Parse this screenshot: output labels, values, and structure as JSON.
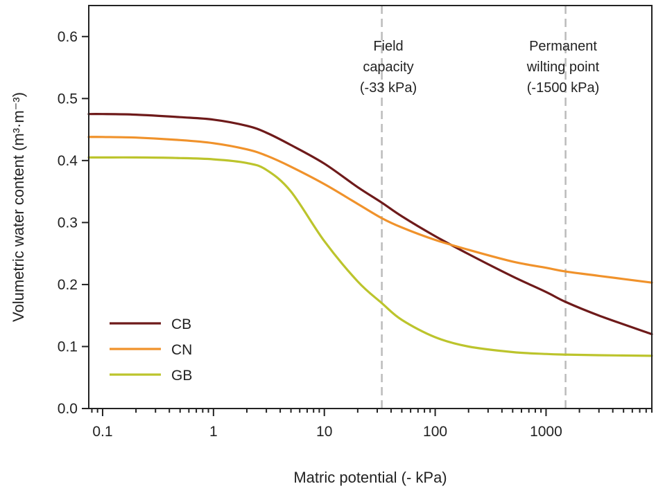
{
  "chart_data": {
    "type": "line",
    "xlabel": "Matric potential (- kPa)",
    "ylabel": "Volumetric water content (m³·m⁻³)",
    "xscale": "log",
    "xlim": [
      0.075,
      9000
    ],
    "ylim": [
      0.0,
      0.65
    ],
    "x_ticks": [
      0.1,
      1,
      10,
      100,
      1000
    ],
    "x_tick_labels": [
      "0.1",
      "1",
      "10",
      "100",
      "1000"
    ],
    "y_ticks": [
      0.0,
      0.1,
      0.2,
      0.3,
      0.4,
      0.5,
      0.6
    ],
    "y_tick_labels": [
      "0.0",
      "0.1",
      "0.2",
      "0.3",
      "0.4",
      "0.5",
      "0.6"
    ],
    "grid": false,
    "legend_position": "bottom-left",
    "x": [
      0.075,
      0.1,
      0.2,
      0.5,
      1,
      2,
      3,
      5,
      10,
      20,
      33,
      50,
      100,
      200,
      500,
      1000,
      1500,
      3000,
      9000
    ],
    "series": [
      {
        "name": "CB",
        "color": "#6e1a1a",
        "values": [
          0.475,
          0.475,
          0.474,
          0.47,
          0.466,
          0.456,
          0.445,
          0.425,
          0.395,
          0.357,
          0.332,
          0.31,
          0.278,
          0.249,
          0.213,
          0.188,
          0.172,
          0.15,
          0.12
        ]
      },
      {
        "name": "CN",
        "color": "#f0922b",
        "values": [
          0.438,
          0.438,
          0.437,
          0.433,
          0.428,
          0.418,
          0.408,
          0.39,
          0.362,
          0.33,
          0.307,
          0.292,
          0.272,
          0.256,
          0.237,
          0.227,
          0.221,
          0.214,
          0.203
        ]
      },
      {
        "name": "GB",
        "color": "#bcc42c",
        "values": [
          0.405,
          0.405,
          0.405,
          0.404,
          0.402,
          0.396,
          0.385,
          0.35,
          0.27,
          0.205,
          0.17,
          0.143,
          0.115,
          0.1,
          0.091,
          0.088,
          0.087,
          0.086,
          0.085
        ]
      }
    ],
    "reference_lines": [
      {
        "x": 33,
        "label_lines": [
          "Field",
          "capacity",
          "(-33 kPa)"
        ],
        "color": "#bbbbbb"
      },
      {
        "x": 1500,
        "label_lines": [
          "Permanent",
          "wilting point",
          "(-1500 kPa)"
        ],
        "color": "#bbbbbb"
      }
    ]
  }
}
